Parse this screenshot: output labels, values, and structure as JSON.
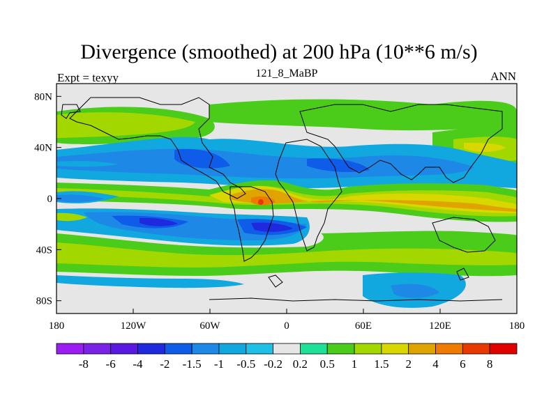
{
  "title": "Divergence (smoothed) at 200 hPa (10**6 m/s)",
  "left_subtitle": "Expt = texyy",
  "center_subtitle": "121_8_MaBP",
  "right_subtitle": "ANN",
  "chart_data": {
    "type": "filled-contour-map",
    "projection": "cylindrical-equidistant",
    "lon_range": [
      -180,
      180
    ],
    "lat_range": [
      -90,
      90
    ],
    "x_ticks": [
      {
        "lon": -180,
        "label": "180"
      },
      {
        "lon": -120,
        "label": "120W"
      },
      {
        "lon": -60,
        "label": "60W"
      },
      {
        "lon": 0,
        "label": "0"
      },
      {
        "lon": 60,
        "label": "60E"
      },
      {
        "lon": 120,
        "label": "120E"
      },
      {
        "lon": 180,
        "label": "180"
      }
    ],
    "y_ticks": [
      {
        "lat": 80,
        "label": "80N"
      },
      {
        "lat": 40,
        "label": "40N"
      },
      {
        "lat": 0,
        "label": "0"
      },
      {
        "lat": -40,
        "label": "40S"
      },
      {
        "lat": -80,
        "label": "80S"
      }
    ],
    "colorbar": {
      "levels": [
        "-8",
        "-6",
        "-4",
        "-2",
        "-1.5",
        "-1",
        "-0.5",
        "-0.2",
        "0.2",
        "0.5",
        "1",
        "1.5",
        "2",
        "4",
        "6",
        "8"
      ],
      "colors": [
        "#9a1df2",
        "#7a22e6",
        "#5a18e0",
        "#1f2adf",
        "#0f5ce8",
        "#1e88e6",
        "#11a8df",
        "#1ec0e6",
        "#e6e6e6",
        "#1ee096",
        "#4ccc1a",
        "#a2d800",
        "#d8d800",
        "#e0a400",
        "#ee7a00",
        "#e83a00",
        "#e00000"
      ]
    }
  }
}
